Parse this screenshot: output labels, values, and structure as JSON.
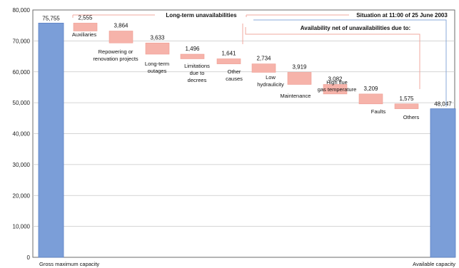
{
  "chart_data": {
    "type": "waterfall",
    "title": "",
    "ylim": [
      0,
      80000
    ],
    "yticks": [
      "80,000",
      "70,000",
      "60,000",
      "50,000",
      "40,000",
      "30,000",
      "20,000",
      "10,000",
      "0"
    ],
    "ytick_values": [
      80000,
      70000,
      60000,
      50000,
      40000,
      30000,
      20000,
      10000,
      0
    ],
    "grid": true,
    "headers": {
      "long_term": "Long-term unavailabilities",
      "situation": "Situation at 11:00 of 25 June 2003",
      "availability_net": "Availability net of unavailabilities due to:"
    },
    "totals": [
      {
        "name": "Gross maximum capacity",
        "value": 75755,
        "value_label": "75,755"
      },
      {
        "name": "Available capacity",
        "value": 48047,
        "value_label": "48,047"
      }
    ],
    "steps": [
      {
        "name": "Auxiliaries",
        "lines": [
          "Auxiliaries"
        ],
        "value": 2555,
        "value_label": "2,555",
        "group": "long-term"
      },
      {
        "name": "Repowering or renovation projects",
        "lines": [
          "Repowering or",
          "renovation projects"
        ],
        "value": 3864,
        "value_label": "3,864",
        "group": "long-term"
      },
      {
        "name": "Long-term outages",
        "lines": [
          "Long-term",
          "outages"
        ],
        "value": 3633,
        "value_label": "3,633",
        "group": "long-term"
      },
      {
        "name": "Limitations due to decrees",
        "lines": [
          "Limitations",
          "due to",
          "decrees"
        ],
        "value": 1496,
        "value_label": "1,496",
        "group": "long-term"
      },
      {
        "name": "Other causes",
        "lines": [
          "Other",
          "causes"
        ],
        "value": 1641,
        "value_label": "1,641",
        "group": "long-term"
      },
      {
        "name": "Low hydraulicity",
        "lines": [
          "Low",
          "hydraulicity"
        ],
        "value": 2734,
        "value_label": "2,734",
        "group": "net"
      },
      {
        "name": "Maintenance",
        "lines": [
          "Maintenance"
        ],
        "value": 3919,
        "value_label": "3,919",
        "group": "net"
      },
      {
        "name": "High flue gas temperature",
        "lines": [
          "High flue",
          "gas temperature"
        ],
        "value": 3082,
        "value_label": "3,082",
        "group": "net"
      },
      {
        "name": "Faults",
        "lines": [
          "Faults"
        ],
        "value": 3209,
        "value_label": "3,209",
        "group": "net"
      },
      {
        "name": "Others",
        "lines": [
          "Others"
        ],
        "value": 1575,
        "value_label": "1,575",
        "group": "net"
      }
    ],
    "colors": {
      "total_fill": "#7b9ed8",
      "total_edge": "#5a7fc4",
      "step_fill": "#f6b3aa",
      "step_edge": "#ee9d93",
      "grid": "#c7c7c7",
      "axis": "#6b6b6b",
      "connector_long_term": "#f0a89f",
      "connector_net": "#8aa9d9"
    }
  }
}
